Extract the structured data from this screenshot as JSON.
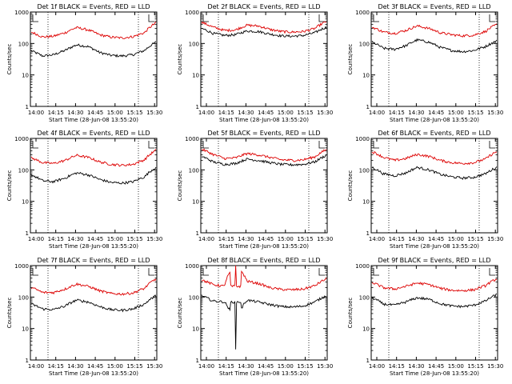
{
  "chart_data": [
    {
      "type": "line",
      "title": "Det 1f BLACK = Events, RED = LLD",
      "xlabel": "Start Time (28-Jun-08 13:55:20)",
      "ylabel": "Counts/sec",
      "x_ticks": [
        "14:00",
        "14:15",
        "14:30",
        "14:45",
        "15:00",
        "15:15",
        "15:30"
      ],
      "y_ticks": [
        "1",
        "10",
        "100",
        "1000"
      ],
      "ylim": [
        1,
        1000
      ],
      "scale": "log",
      "series": [
        {
          "name": "Events",
          "color": "#000000",
          "values": [
            58,
            40,
            44,
            60,
            90,
            80,
            52,
            42,
            40,
            44,
            60,
            110
          ]
        },
        {
          "name": "LLD",
          "color": "#dd0000",
          "values": [
            230,
            160,
            170,
            220,
            320,
            270,
            190,
            160,
            150,
            165,
            220,
            450
          ]
        }
      ]
    },
    {
      "type": "line",
      "title": "Det 2f BLACK = Events, RED = LLD",
      "xlabel": "Start Time (28-Jun-08 13:55:20)",
      "ylabel": "Counts/sec",
      "x_ticks": [
        "14:00",
        "14:15",
        "14:30",
        "14:45",
        "15:00",
        "15:15",
        "15:30"
      ],
      "y_ticks": [
        "1",
        "10",
        "100",
        "1000"
      ],
      "ylim": [
        1,
        1000
      ],
      "scale": "log",
      "series": [
        {
          "name": "Events",
          "color": "#000000",
          "values": [
            300,
            210,
            180,
            190,
            250,
            240,
            200,
            175,
            170,
            180,
            220,
            330
          ]
        },
        {
          "name": "LLD",
          "color": "#dd0000",
          "values": [
            470,
            330,
            260,
            270,
            380,
            360,
            280,
            240,
            230,
            240,
            300,
            500
          ]
        }
      ]
    },
    {
      "type": "line",
      "title": "Det 3f BLACK = Events, RED = LLD",
      "xlabel": "Start Time (28-Jun-08 13:55:20)",
      "ylabel": "Counts/sec",
      "x_ticks": [
        "14:00",
        "14:15",
        "14:30",
        "14:45",
        "15:00",
        "15:15",
        "15:30"
      ],
      "y_ticks": [
        "1",
        "10",
        "100",
        "1000"
      ],
      "ylim": [
        1,
        1000
      ],
      "scale": "log",
      "series": [
        {
          "name": "Events",
          "color": "#000000",
          "values": [
            110,
            70,
            65,
            85,
            130,
            110,
            75,
            60,
            55,
            60,
            80,
            120
          ]
        },
        {
          "name": "LLD",
          "color": "#dd0000",
          "values": [
            330,
            230,
            210,
            260,
            360,
            300,
            220,
            190,
            175,
            185,
            240,
            400
          ]
        }
      ]
    },
    {
      "type": "line",
      "title": "Det 4f BLACK = Events, RED = LLD",
      "xlabel": "Start Time (28-Jun-08 13:55:20)",
      "ylabel": "Counts/sec",
      "x_ticks": [
        "14:00",
        "14:15",
        "14:30",
        "14:45",
        "15:00",
        "15:15",
        "15:30"
      ],
      "y_ticks": [
        "1",
        "10",
        "100",
        "1000"
      ],
      "ylim": [
        1,
        1000
      ],
      "scale": "log",
      "series": [
        {
          "name": "Events",
          "color": "#000000",
          "values": [
            70,
            45,
            42,
            55,
            80,
            70,
            50,
            40,
            38,
            42,
            60,
            120
          ]
        },
        {
          "name": "LLD",
          "color": "#dd0000",
          "values": [
            240,
            170,
            160,
            200,
            290,
            250,
            180,
            150,
            140,
            150,
            210,
            420
          ]
        }
      ]
    },
    {
      "type": "line",
      "title": "Det 5f BLACK = Events, RED = LLD",
      "xlabel": "Start Time (28-Jun-08 13:55:20)",
      "ylabel": "Counts/sec",
      "x_ticks": [
        "14:00",
        "14:15",
        "14:30",
        "14:45",
        "15:00",
        "15:15",
        "15:30"
      ],
      "y_ticks": [
        "1",
        "10",
        "100",
        "1000"
      ],
      "ylim": [
        1,
        1000
      ],
      "scale": "log",
      "series": [
        {
          "name": "Events",
          "color": "#000000",
          "values": [
            270,
            180,
            150,
            160,
            220,
            200,
            170,
            150,
            145,
            150,
            180,
            290
          ]
        },
        {
          "name": "LLD",
          "color": "#dd0000",
          "values": [
            450,
            310,
            230,
            240,
            330,
            300,
            250,
            210,
            200,
            210,
            260,
            440
          ]
        }
      ]
    },
    {
      "type": "line",
      "title": "Det 6f BLACK = Events, RED = LLD",
      "xlabel": "Start Time (28-Jun-08 13:55:20)",
      "ylabel": "Counts/sec",
      "x_ticks": [
        "14:00",
        "14:15",
        "14:30",
        "14:45",
        "15:00",
        "15:15",
        "15:30"
      ],
      "y_ticks": [
        "1",
        "10",
        "100",
        "1000"
      ],
      "ylim": [
        1,
        1000
      ],
      "scale": "log",
      "series": [
        {
          "name": "Events",
          "color": "#000000",
          "values": [
            120,
            75,
            65,
            80,
            120,
            100,
            72,
            60,
            55,
            58,
            75,
            120
          ]
        },
        {
          "name": "LLD",
          "color": "#dd0000",
          "values": [
            380,
            250,
            200,
            230,
            310,
            270,
            200,
            170,
            160,
            170,
            220,
            380
          ]
        }
      ]
    },
    {
      "type": "line",
      "title": "Det 7f BLACK = Events, RED = LLD",
      "xlabel": "Start Time (28-Jun-08 13:55:20)",
      "ylabel": "Counts/sec",
      "x_ticks": [
        "14:00",
        "14:15",
        "14:30",
        "14:45",
        "15:00",
        "15:15",
        "15:30"
      ],
      "y_ticks": [
        "1",
        "10",
        "100",
        "1000"
      ],
      "ylim": [
        1,
        1000
      ],
      "scale": "log",
      "series": [
        {
          "name": "Events",
          "color": "#000000",
          "values": [
            60,
            42,
            40,
            52,
            80,
            70,
            50,
            40,
            38,
            42,
            60,
            110
          ]
        },
        {
          "name": "LLD",
          "color": "#dd0000",
          "values": [
            200,
            140,
            140,
            180,
            260,
            220,
            160,
            130,
            125,
            135,
            190,
            380
          ]
        }
      ]
    },
    {
      "type": "line",
      "title": "Det 8f BLACK = Events, RED = LLD",
      "xlabel": "Start Time (28-Jun-08 13:55:20)",
      "ylabel": "Counts/sec",
      "x_ticks": [
        "14:00",
        "14:15",
        "14:30",
        "14:45",
        "15:00",
        "15:15",
        "15:30"
      ],
      "y_ticks": [
        "1",
        "10",
        "100",
        "1000"
      ],
      "ylim": [
        1,
        1000
      ],
      "scale": "log",
      "series": [
        {
          "name": "Events",
          "color": "#000000",
          "values": [
            110,
            75,
            70,
            2,
            80,
            70,
            58,
            50,
            48,
            52,
            70,
            110
          ]
        },
        {
          "name": "LLD",
          "color": "#dd0000",
          "values": [
            350,
            250,
            220,
            1000,
            320,
            270,
            200,
            175,
            170,
            180,
            230,
            380
          ]
        }
      ]
    },
    {
      "type": "line",
      "title": "Det 9f BLACK = Events, RED = LLD",
      "xlabel": "Start Time (28-Jun-08 13:55:20)",
      "ylabel": "Counts/sec",
      "x_ticks": [
        "14:00",
        "14:15",
        "14:30",
        "14:45",
        "15:00",
        "15:15",
        "15:30"
      ],
      "y_ticks": [
        "1",
        "10",
        "100",
        "1000"
      ],
      "ylim": [
        1,
        1000
      ],
      "scale": "log",
      "series": [
        {
          "name": "Events",
          "color": "#000000",
          "values": [
            95,
            60,
            55,
            70,
            95,
            85,
            62,
            52,
            50,
            55,
            75,
            120
          ]
        },
        {
          "name": "LLD",
          "color": "#dd0000",
          "values": [
            290,
            200,
            180,
            220,
            280,
            250,
            190,
            165,
            160,
            170,
            230,
            380
          ]
        }
      ]
    }
  ]
}
